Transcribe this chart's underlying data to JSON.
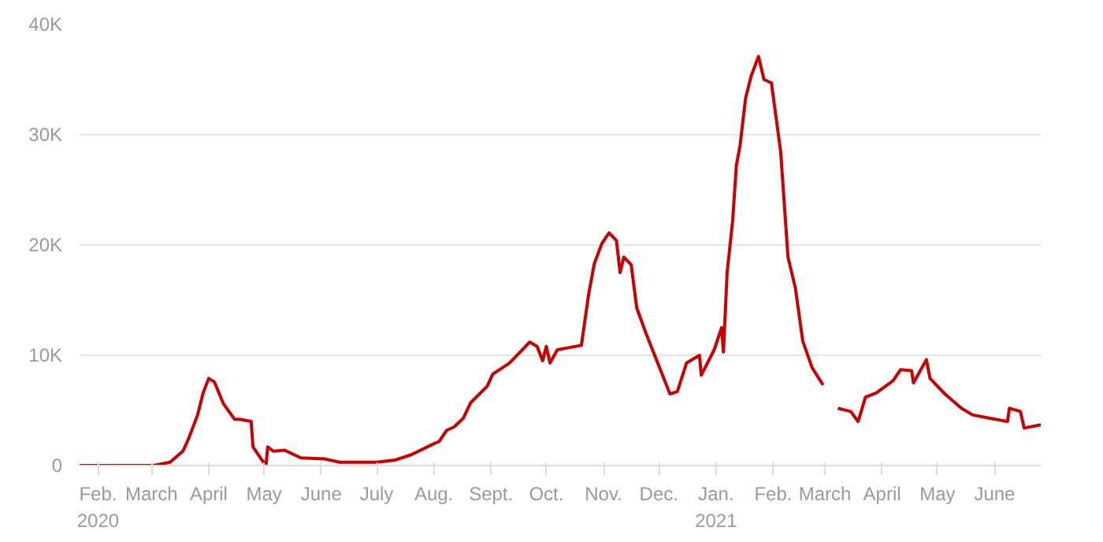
{
  "chart_data": {
    "type": "line",
    "x": [
      "2020-01-22",
      "2020-03-02",
      "2020-03-11",
      "2020-03-18",
      "2020-03-21",
      "2020-03-26",
      "2020-03-29",
      "2020-04-01",
      "2020-04-04",
      "2020-04-09",
      "2020-04-15",
      "2020-04-18",
      "2020-04-24",
      "2020-04-25",
      "2020-04-29",
      "2020-05-02",
      "2020-05-03",
      "2020-05-06",
      "2020-05-12",
      "2020-05-21",
      "2020-06-03",
      "2020-06-11",
      "2020-07-01",
      "2020-07-11",
      "2020-07-20",
      "2020-07-31",
      "2020-08-04",
      "2020-08-08",
      "2020-08-12",
      "2020-08-17",
      "2020-08-21",
      "2020-08-30",
      "2020-09-02",
      "2020-09-11",
      "2020-09-18",
      "2020-09-22",
      "2020-09-26",
      "2020-09-29",
      "2020-10-01",
      "2020-10-03",
      "2020-10-07",
      "2020-10-20",
      "2020-10-24",
      "2020-10-27",
      "2020-10-31",
      "2020-11-04",
      "2020-11-08",
      "2020-11-10",
      "2020-11-12",
      "2020-11-16",
      "2020-11-19",
      "2020-11-24",
      "2020-11-28",
      "2020-12-03",
      "2020-12-07",
      "2020-12-11",
      "2020-12-16",
      "2020-12-23",
      "2020-12-24",
      "2020-12-31",
      "2021-01-04",
      "2021-01-05",
      "2021-01-07",
      "2021-01-10",
      "2021-01-12",
      "2021-01-14",
      "2021-01-17",
      "2021-01-20",
      "2021-01-24",
      "2021-01-27",
      "2021-01-31",
      "2021-02-05",
      "2021-02-09",
      "2021-02-13",
      "2021-02-17",
      "2021-02-22",
      "2021-02-28",
      "2021-03-03",
      "2021-03-08",
      "2021-03-15",
      "2021-03-19",
      "2021-03-23",
      "2021-03-29",
      "2021-04-07",
      "2021-04-11",
      "2021-04-17",
      "2021-04-18",
      "2021-04-25",
      "2021-04-27",
      "2021-05-05",
      "2021-05-14",
      "2021-05-20",
      "2021-05-29",
      "2021-06-08",
      "2021-06-09",
      "2021-06-15",
      "2021-06-17",
      "2021-06-26"
    ],
    "series": [
      {
        "color": "#cc0000",
        "values": [
          0,
          0,
          300,
          1300,
          2400,
          4600,
          6600,
          7900,
          7600,
          5600,
          4200,
          4200,
          4000,
          1700,
          700,
          0,
          1700,
          1300,
          1400,
          700,
          600,
          300,
          300,
          500,
          1000,
          1900,
          2200,
          3200,
          3500,
          4300,
          5700,
          7200,
          8300,
          9300,
          10500,
          11200,
          10800,
          9500,
          10800,
          9300,
          10500,
          10900,
          15600,
          18300,
          20100,
          21100,
          20400,
          17500,
          18900,
          18200,
          14300,
          12000,
          10300,
          8200,
          6500,
          6700,
          9300,
          10000,
          8200,
          10500,
          12500,
          10300,
          17500,
          22200,
          27200,
          29000,
          33300,
          35300,
          37100,
          35000,
          34700,
          28500,
          18900,
          16100,
          11300,
          8900,
          7300,
          null,
          5200,
          4900,
          4000,
          6200,
          6600,
          7700,
          8700,
          8600,
          7500,
          9600,
          7900,
          6500,
          5200,
          4600,
          4300,
          4000,
          5200,
          4900,
          3400,
          3700
        ]
      }
    ],
    "xlim": [
      "2020-01-22",
      "2021-06-26"
    ],
    "xticks": [
      {
        "value": "2020-02-01",
        "label": "Feb.\n2020"
      },
      {
        "value": "2020-03-01",
        "label": "March"
      },
      {
        "value": "2020-04-01",
        "label": "April"
      },
      {
        "value": "2020-05-01",
        "label": "May"
      },
      {
        "value": "2020-06-01",
        "label": "June"
      },
      {
        "value": "2020-07-01",
        "label": "July"
      },
      {
        "value": "2020-08-01",
        "label": "Aug."
      },
      {
        "value": "2020-09-01",
        "label": "Sept."
      },
      {
        "value": "2020-10-01",
        "label": "Oct."
      },
      {
        "value": "2020-11-01",
        "label": "Nov."
      },
      {
        "value": "2020-12-01",
        "label": "Dec."
      },
      {
        "value": "2021-01-01",
        "label": "Jan.\n2021"
      },
      {
        "value": "2021-02-01",
        "label": "Feb."
      },
      {
        "value": "2021-03-01",
        "label": "March"
      },
      {
        "value": "2021-04-01",
        "label": "April"
      },
      {
        "value": "2021-05-01",
        "label": "May"
      },
      {
        "value": "2021-06-01",
        "label": "June"
      }
    ],
    "ylim": [
      0,
      40000
    ],
    "yticks": [
      0,
      {
        "value": 10000,
        "label": "10K"
      },
      {
        "value": 20000,
        "label": "20K"
      },
      {
        "value": 30000,
        "label": "30K"
      },
      {
        "value": 40000,
        "label": "40K"
      }
    ],
    "grid": "y",
    "marker": "none",
    "line_style": "solid"
  }
}
